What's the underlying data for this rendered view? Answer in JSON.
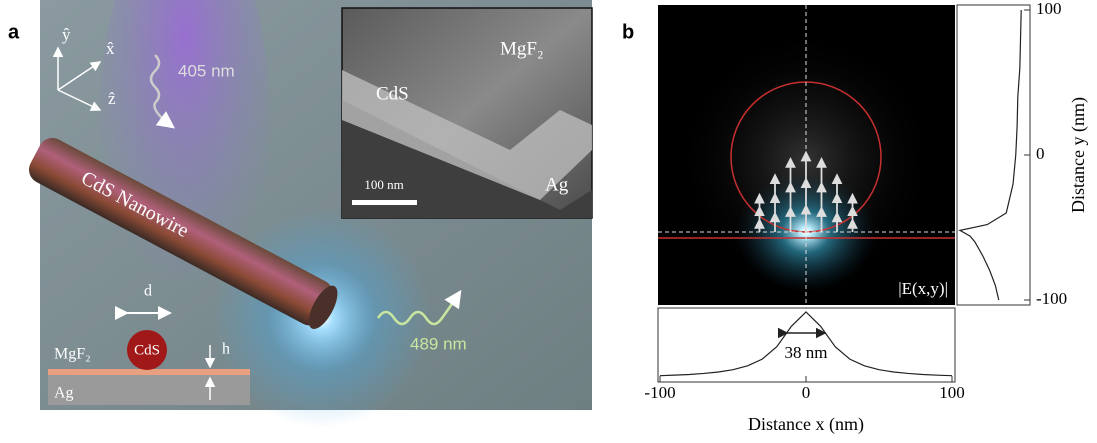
{
  "panel_a": {
    "label": "a",
    "axes": {
      "y": "ŷ",
      "x": "x̂",
      "z": "ẑ"
    },
    "excitation": "405 nm",
    "nanowire": "CdS Nanowire",
    "emission": "489 nm",
    "inset": {
      "top": "MgF₂",
      "wire": "CdS",
      "scale_bar": "100 nm",
      "substrate": "Ag"
    },
    "schematic": {
      "d": "d",
      "particle": "CdS",
      "spacer": "MgF₂",
      "h": "h",
      "substrate": "Ag"
    }
  },
  "panel_b": {
    "label": "b",
    "field_label": "|E(x,y)|",
    "width_label": "38 nm",
    "x_axis": {
      "label": "Distance x (nm)",
      "lim": [
        -100,
        100
      ],
      "ticks": [
        -100,
        0,
        100
      ]
    },
    "y_axis": {
      "label": "Distance y (nm)",
      "lim": [
        -100,
        100
      ],
      "ticks": [
        -100,
        0,
        100
      ]
    },
    "x_profile": {
      "x": [
        -100,
        -90,
        -80,
        -70,
        -60,
        -50,
        -40,
        -30,
        -20,
        -10,
        0,
        10,
        20,
        30,
        40,
        50,
        60,
        70,
        80,
        90,
        100
      ],
      "values": [
        0.035,
        0.043,
        0.053,
        0.069,
        0.091,
        0.126,
        0.184,
        0.286,
        0.474,
        0.783,
        1,
        0.783,
        0.474,
        0.286,
        0.184,
        0.126,
        0.091,
        0.069,
        0.053,
        0.043,
        0.035
      ]
    },
    "y_profile": {
      "y": [
        100,
        80,
        60,
        40,
        20,
        0,
        -20,
        -40,
        -48,
        -52,
        -56,
        -60,
        -70,
        -80,
        -90,
        -100
      ],
      "values": [
        0.1,
        0.11,
        0.12,
        0.15,
        0.16,
        0.18,
        0.22,
        0.32,
        0.6,
        1,
        0.85,
        0.78,
        0.66,
        0.56,
        0.48,
        0.43
      ]
    }
  }
}
